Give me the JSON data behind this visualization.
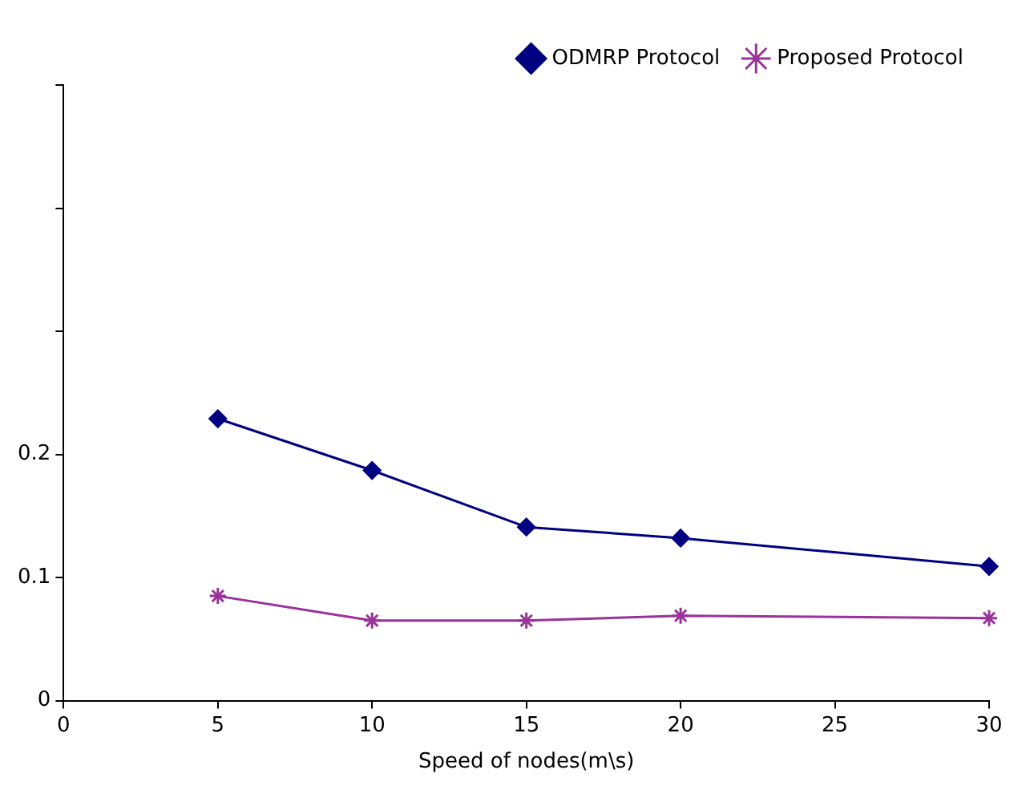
{
  "chart_data": {
    "type": "line",
    "xlabel": "Speed of nodes(m\\s)",
    "x": [
      5,
      10,
      15,
      20,
      30
    ],
    "series": [
      {
        "name": "ODMRP Protocol",
        "color": "#000080",
        "marker": "diamond",
        "values": [
          0.229,
          0.187,
          0.141,
          0.132,
          0.109
        ]
      },
      {
        "name": "Proposed Protocol",
        "color": "#993399",
        "marker": "cross",
        "values": [
          0.085,
          0.065,
          0.065,
          0.069,
          0.067
        ]
      }
    ],
    "xlim": [
      0,
      30
    ],
    "xticks": [
      0,
      5,
      10,
      15,
      20,
      25,
      30
    ],
    "ylim": [
      0,
      0.5
    ],
    "yticks": [
      0,
      0.1,
      0.2,
      {
        "value": 0.3,
        "label": null
      },
      {
        "value": 0.4,
        "label": null
      },
      {
        "value": 0.5,
        "label": null
      }
    ],
    "grid": false,
    "legend": "top right"
  }
}
